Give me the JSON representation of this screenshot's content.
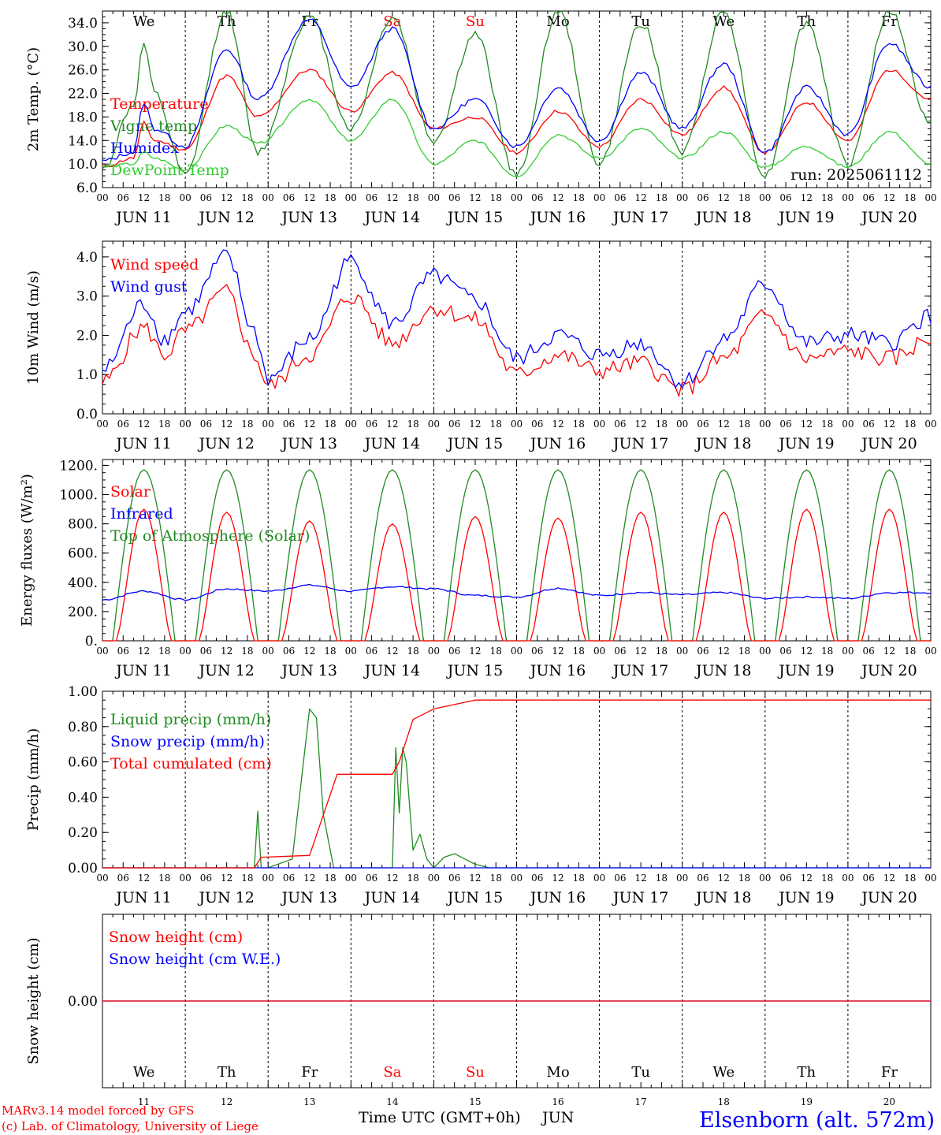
{
  "colors": {
    "red": "#ff0000",
    "green": "#228b22",
    "blue": "#0000ff",
    "lime": "#32cd32",
    "black": "#000000"
  },
  "days": [
    "11",
    "12",
    "13",
    "14",
    "15",
    "16",
    "17",
    "18",
    "19",
    "20"
  ],
  "date_labels": [
    "JUN 11",
    "JUN 12",
    "JUN 13",
    "JUN 14",
    "JUN 15",
    "JUN 16",
    "JUN 17",
    "JUN 18",
    "JUN 19",
    "JUN 20"
  ],
  "hour_labels": [
    "00",
    "06",
    "12",
    "18"
  ],
  "final_hour_label": "00",
  "weekdays": [
    {
      "label": "We",
      "color": "#000000"
    },
    {
      "label": "Th",
      "color": "#000000"
    },
    {
      "label": "Fr",
      "color": "#000000"
    },
    {
      "label": "Sa",
      "color": "#ff0000"
    },
    {
      "label": "Su",
      "color": "#ff0000"
    },
    {
      "label": "Mo",
      "color": "#000000"
    },
    {
      "label": "Tu",
      "color": "#000000"
    },
    {
      "label": "We",
      "color": "#000000"
    },
    {
      "label": "Th",
      "color": "#000000"
    },
    {
      "label": "Fr",
      "color": "#000000"
    }
  ],
  "run_label": "run: 2025061112",
  "footer": {
    "model": "MARv3.14 model forced by GFS",
    "lab": "(c) Lab. of Climatology, University of Liege",
    "time_label": "Time UTC (GMT+0h)",
    "month": "JUN",
    "station": "Elsenborn (alt. 572m)"
  },
  "chart_data": [
    {
      "id": "temperature",
      "type": "line",
      "ylabel": "2m Temp. (°C)",
      "ylim": [
        6.0,
        36.0
      ],
      "yticks": [
        "6.0",
        "10.0",
        "14.0",
        "18.0",
        "22.0",
        "26.0",
        "30.0",
        "34.0"
      ],
      "ytick_values": [
        6,
        10,
        14,
        18,
        22,
        26,
        30,
        34
      ],
      "x_hours": [
        0,
        9,
        12,
        15,
        24,
        36,
        45,
        60,
        72,
        84,
        96,
        108,
        120,
        132,
        144,
        156,
        168,
        180,
        192,
        204,
        216,
        228,
        240
      ],
      "series": [
        {
          "name": "Temperature",
          "color": "#ff0000",
          "values": [
            9.5,
            11,
            17,
            14,
            12.5,
            25,
            18,
            26,
            19,
            25.5,
            16,
            18,
            12,
            19,
            13,
            21,
            15,
            23,
            12,
            20.5,
            14,
            26,
            21
          ]
        },
        {
          "name": "Vigne temp",
          "color": "#228b22",
          "values": [
            9,
            20,
            30.5,
            22,
            8,
            36,
            12,
            35,
            16,
            35,
            14,
            32,
            8,
            36,
            10,
            34,
            12,
            36,
            8,
            34,
            10,
            36,
            17
          ]
        },
        {
          "name": "Humidex",
          "color": "#0000ff",
          "values": [
            10.5,
            12,
            20.5,
            16,
            13,
            29.5,
            21,
            34.5,
            23,
            33,
            16,
            21,
            13,
            23,
            14,
            25.5,
            16,
            27,
            12,
            23,
            15,
            30.5,
            23
          ]
        },
        {
          "name": "DewPoint Temp",
          "color": "#32cd32",
          "values": [
            9.5,
            10,
            12,
            11,
            9,
            16.5,
            13.5,
            21,
            14,
            21,
            10,
            14,
            8,
            15,
            11,
            16,
            11,
            15.5,
            9.5,
            13,
            9.5,
            15.5,
            10
          ]
        }
      ]
    },
    {
      "id": "wind",
      "type": "line",
      "ylabel": "10m Wind (m/s)",
      "ylim": [
        0.0,
        4.4
      ],
      "yticks": [
        "0.0",
        "1.0",
        "2.0",
        "3.0",
        "4.0"
      ],
      "ytick_values": [
        0,
        1,
        2,
        3,
        4
      ],
      "x_hours": [
        0,
        12,
        18,
        24,
        36,
        44,
        48,
        60,
        72,
        84,
        96,
        108,
        120,
        132,
        144,
        156,
        168,
        180,
        192,
        204,
        216,
        228,
        240
      ],
      "series": [
        {
          "name": "Wind speed",
          "color": "#ff0000",
          "values": [
            0.8,
            2.2,
            1.5,
            2.1,
            3.1,
            1.5,
            0.7,
            1.5,
            3.0,
            1.8,
            2.7,
            2.4,
            1.0,
            1.5,
            1.1,
            1.3,
            0.6,
            1.4,
            2.5,
            1.4,
            1.6,
            1.4,
            1.9
          ]
        },
        {
          "name": "Wind gust",
          "color": "#0000ff",
          "values": [
            1.1,
            2.8,
            1.9,
            2.6,
            4.0,
            2.1,
            0.9,
            1.9,
            3.9,
            2.3,
            3.5,
            2.9,
            1.4,
            2.0,
            1.5,
            1.8,
            0.8,
            1.9,
            3.3,
            1.8,
            2.0,
            1.8,
            2.5
          ]
        }
      ]
    },
    {
      "id": "energy",
      "type": "line",
      "ylabel": "Energy fluxes (W/m²)",
      "ylim": [
        0.0,
        1240.0
      ],
      "yticks": [
        "0.",
        "200.",
        "400.",
        "600.",
        "800.",
        "1000.",
        "1200."
      ],
      "ytick_values": [
        0,
        200,
        400,
        600,
        800,
        1000,
        1200
      ],
      "solar_peaks": [
        900,
        880,
        820,
        800,
        850,
        840,
        880,
        880,
        900,
        900
      ],
      "toa_peak": 1170,
      "series": [
        {
          "name": "Solar",
          "color": "#ff0000"
        },
        {
          "name": "Infrared",
          "color": "#0000ff",
          "x_hours": [
            0,
            12,
            24,
            36,
            48,
            60,
            72,
            84,
            96,
            108,
            120,
            132,
            144,
            156,
            168,
            180,
            192,
            204,
            216,
            228,
            240
          ],
          "values": [
            280,
            340,
            280,
            355,
            340,
            380,
            340,
            370,
            355,
            310,
            300,
            360,
            310,
            330,
            315,
            330,
            290,
            300,
            290,
            330,
            330
          ]
        },
        {
          "name": "Top of Atmosphere (Solar)",
          "color": "#228b22"
        }
      ]
    },
    {
      "id": "precip",
      "type": "line",
      "ylabel": "Precip (mm/h)",
      "ylim": [
        0.0,
        1.0
      ],
      "yticks": [
        "0.00",
        "0.20",
        "0.40",
        "0.60",
        "0.80",
        "1.00"
      ],
      "ytick_values": [
        0,
        0.2,
        0.4,
        0.6,
        0.8,
        1.0
      ],
      "series": [
        {
          "name": "Liquid precip (mm/h)",
          "color": "#228b22",
          "x_hours": [
            0,
            44,
            45,
            46,
            48,
            55,
            60,
            62,
            64,
            67,
            84,
            85,
            86,
            87,
            88,
            90,
            92,
            94,
            96,
            99,
            102,
            105,
            108,
            112,
            240
          ],
          "values": [
            0,
            0,
            0.32,
            0,
            0,
            0.05,
            0.9,
            0.85,
            0.3,
            0,
            0,
            0.68,
            0.31,
            0.68,
            0.6,
            0.1,
            0.19,
            0.05,
            0,
            0.06,
            0.08,
            0.05,
            0.02,
            0,
            0
          ]
        },
        {
          "name": "Snow precip (mm/h)",
          "color": "#0000ff",
          "x_hours": [
            0,
            240
          ],
          "values": [
            0,
            0
          ]
        },
        {
          "name": "Total cumulated (cm)",
          "color": "#ff0000",
          "x_hours": [
            0,
            44,
            46,
            60,
            64,
            68,
            84,
            86,
            90,
            96,
            108,
            240
          ],
          "values": [
            0,
            0,
            0.06,
            0.07,
            0.3,
            0.53,
            0.53,
            0.6,
            0.84,
            0.9,
            0.95,
            0.95
          ]
        }
      ]
    },
    {
      "id": "snow",
      "type": "line",
      "ylabel": "Snow height (cm)",
      "ylim": [
        -1.0,
        1.0
      ],
      "yticks": [
        "0.00"
      ],
      "ytick_values": [
        0
      ],
      "series": [
        {
          "name": "Snow height (cm)",
          "color": "#ff0000",
          "x_hours": [
            0,
            240
          ],
          "values": [
            0,
            0
          ]
        },
        {
          "name": "Snow height (cm W.E.)",
          "color": "#0000ff",
          "x_hours": [
            0,
            240
          ],
          "values": [
            0,
            0
          ]
        }
      ]
    }
  ]
}
